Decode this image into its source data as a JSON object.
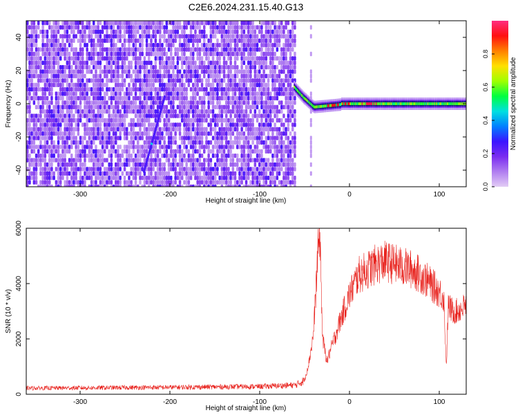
{
  "title": "C2E6.2024.231.15.40.G13",
  "colors": {
    "snr_line": "#e8231e",
    "colorbar": [
      "#e2ccf5",
      "#b07ef0",
      "#7a2cf0",
      "#3b14ff",
      "#0080ff",
      "#00e0e0",
      "#00ff40",
      "#a0ff00",
      "#ffe000",
      "#ff8000",
      "#ff1010",
      "#ff2d80"
    ]
  },
  "chart_data": [
    {
      "type": "heatmap",
      "xlabel": "Height of straight line (km)",
      "ylabel": "Frequency (Hz)",
      "xlim": [
        -360,
        130
      ],
      "ylim": [
        -50,
        50
      ],
      "xticks": [
        -300,
        -200,
        -100,
        0,
        100
      ],
      "yticks": [
        -40,
        -20,
        0,
        20,
        40
      ],
      "xtick_labels": [
        "-300",
        "-200",
        "-100",
        "0",
        "100"
      ],
      "ytick_labels": [
        "-40",
        "-20",
        "0",
        "20",
        "40"
      ],
      "colorbar": {
        "label": "Normalized spectral amplitude",
        "range": [
          0,
          1
        ],
        "ticks": [
          0.0,
          0.2,
          0.4,
          0.6,
          0.8
        ],
        "tick_labels": [
          "0.0",
          "0.2",
          "0.4",
          "0.6",
          "0.8"
        ]
      },
      "features": {
        "noise_region_x": [
          -360,
          -62
        ],
        "streak": {
          "x": [
            -230,
            -207
          ],
          "y": [
            -40,
            5
          ]
        },
        "carrier": {
          "x": [
            -62,
            130
          ],
          "y": [
            10,
            0
          ]
        }
      }
    },
    {
      "type": "line",
      "xlabel": "Height of straight line (km)",
      "ylabel": "SNR (10 * v/v)",
      "xlim": [
        -360,
        130
      ],
      "ylim": [
        0,
        6000
      ],
      "xticks": [
        -300,
        -200,
        -100,
        0,
        100
      ],
      "yticks": [
        0,
        2000,
        4000,
        6000
      ],
      "xtick_labels": [
        "-300",
        "-200",
        "-100",
        "0",
        "100"
      ],
      "ytick_labels": [
        "0",
        "2000",
        "4000",
        "6000"
      ],
      "series": [
        {
          "x": [
            -360,
            -300,
            -200,
            -100,
            -60,
            -50,
            -45,
            -40,
            -35,
            -33,
            -30,
            -25,
            -20,
            -10,
            0,
            10,
            20,
            30,
            40,
            50,
            60,
            70,
            80,
            90,
            100,
            105,
            108,
            110,
            115,
            120,
            130
          ],
          "y": [
            220,
            230,
            250,
            280,
            330,
            500,
            1200,
            2200,
            5200,
            5900,
            2000,
            1200,
            1700,
            2700,
            3600,
            4300,
            4500,
            4700,
            4800,
            4700,
            4600,
            4500,
            4300,
            4000,
            3700,
            3500,
            1000,
            3200,
            3000,
            3000,
            3200
          ]
        }
      ]
    }
  ]
}
